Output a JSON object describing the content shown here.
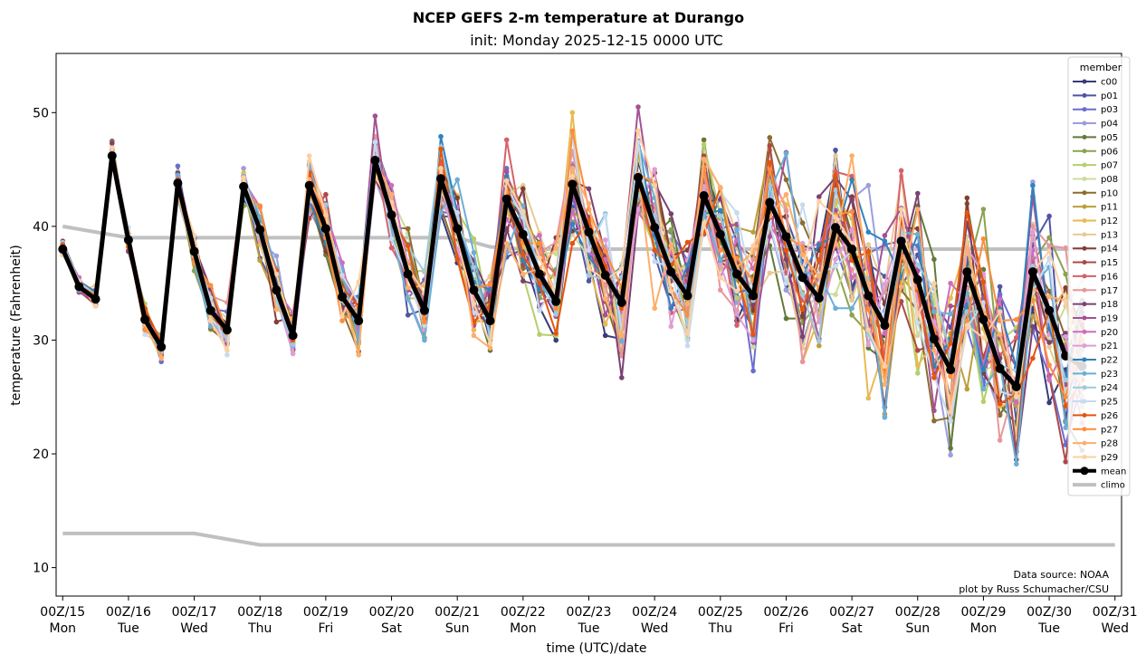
{
  "chart_data": {
    "type": "line",
    "title": "NCEP GEFS 2-m temperature at Durango",
    "subtitle": "init: Monday 2025-12-15 0000 UTC",
    "xlabel": "time (UTC)/date",
    "ylabel": "temperature (Fahrenheit)",
    "xlim": [
      -0.1,
      16.1
    ],
    "ylim": [
      7.5,
      55.2
    ],
    "yticks": [
      10,
      20,
      30,
      40,
      50
    ],
    "xticks": [
      {
        "day": 0,
        "label": "00Z/15",
        "weekday": "Mon"
      },
      {
        "day": 1,
        "label": "00Z/16",
        "weekday": "Tue"
      },
      {
        "day": 2,
        "label": "00Z/17",
        "weekday": "Wed"
      },
      {
        "day": 3,
        "label": "00Z/18",
        "weekday": "Thu"
      },
      {
        "day": 4,
        "label": "00Z/19",
        "weekday": "Fri"
      },
      {
        "day": 5,
        "label": "00Z/20",
        "weekday": "Sat"
      },
      {
        "day": 6,
        "label": "00Z/21",
        "weekday": "Sun"
      },
      {
        "day": 7,
        "label": "00Z/22",
        "weekday": "Mon"
      },
      {
        "day": 8,
        "label": "00Z/23",
        "weekday": "Tue"
      },
      {
        "day": 9,
        "label": "00Z/24",
        "weekday": "Wed"
      },
      {
        "day": 10,
        "label": "00Z/25",
        "weekday": "Thu"
      },
      {
        "day": 11,
        "label": "00Z/26",
        "weekday": "Fri"
      },
      {
        "day": 12,
        "label": "00Z/27",
        "weekday": "Sat"
      },
      {
        "day": 13,
        "label": "00Z/28",
        "weekday": "Sun"
      },
      {
        "day": 14,
        "label": "00Z/29",
        "weekday": "Mon"
      },
      {
        "day": 15,
        "label": "00Z/30",
        "weekday": "Tue"
      },
      {
        "day": 16,
        "label": "00Z/31",
        "weekday": "Wed"
      }
    ],
    "time_step_days": 0.25,
    "legend": {
      "title": "member",
      "position": "top-right"
    },
    "mean": {
      "name": "mean",
      "color": "#000000",
      "values": [
        38,
        34.7,
        33.6,
        46.2,
        38.8,
        31.8,
        29.4,
        43.8,
        37.8,
        32.6,
        30.9,
        43.5,
        39.7,
        34.4,
        30.4,
        43.6,
        39.8,
        33.8,
        31.7,
        45.8,
        41.0,
        35.8,
        32.6,
        44.2,
        39.8,
        34.4,
        31.7,
        42.4,
        39.3,
        35.8,
        33.4,
        43.7,
        39.5,
        35.7,
        33.3,
        44.3,
        39.9,
        36.0,
        33.9,
        42.7,
        39.3,
        35.8,
        33.9,
        42.1,
        39.1,
        35.5,
        33.7,
        39.9,
        38.0,
        33.9,
        31.3,
        38.7,
        35.3,
        30.1,
        27.4,
        36.0,
        31.8,
        27.5,
        25.9,
        36.0,
        32.6,
        28.6,
        27.7
      ]
    },
    "climo": {
      "name": "climo",
      "color": "#c0c0c0",
      "upper": [
        [
          0,
          40
        ],
        [
          1,
          39
        ],
        [
          2,
          39
        ],
        [
          3,
          39
        ],
        [
          4,
          39
        ],
        [
          5,
          39
        ],
        [
          6,
          39
        ],
        [
          6.5,
          38.2
        ],
        [
          7,
          38
        ],
        [
          16,
          38
        ]
      ],
      "lower": [
        [
          0,
          13
        ],
        [
          2,
          13
        ],
        [
          3,
          12
        ],
        [
          16,
          12
        ]
      ]
    },
    "series": [
      {
        "name": "c00",
        "color": "#393b79"
      },
      {
        "name": "p01",
        "color": "#5254a3"
      },
      {
        "name": "p03",
        "color": "#6b6ecf"
      },
      {
        "name": "p04",
        "color": "#9c9ede"
      },
      {
        "name": "p05",
        "color": "#637939"
      },
      {
        "name": "p06",
        "color": "#8ca252"
      },
      {
        "name": "p07",
        "color": "#b5cf6b"
      },
      {
        "name": "p08",
        "color": "#cedb9c"
      },
      {
        "name": "p10",
        "color": "#8c6d31"
      },
      {
        "name": "p11",
        "color": "#bd9e39"
      },
      {
        "name": "p12",
        "color": "#e7ba52"
      },
      {
        "name": "p13",
        "color": "#e7cb94"
      },
      {
        "name": "p14",
        "color": "#843c39"
      },
      {
        "name": "p15",
        "color": "#ad494a"
      },
      {
        "name": "p16",
        "color": "#d6616b"
      },
      {
        "name": "p17",
        "color": "#e7969c"
      },
      {
        "name": "p18",
        "color": "#7b4173"
      },
      {
        "name": "p19",
        "color": "#a55194"
      },
      {
        "name": "p20",
        "color": "#ce6dbd"
      },
      {
        "name": "p21",
        "color": "#de9ed6"
      },
      {
        "name": "p22",
        "color": "#3182bd"
      },
      {
        "name": "p23",
        "color": "#6baed6"
      },
      {
        "name": "p24",
        "color": "#9ecae1"
      },
      {
        "name": "p25",
        "color": "#c6dbef"
      },
      {
        "name": "p26",
        "color": "#e6550d"
      },
      {
        "name": "p27",
        "color": "#fd8d3c"
      },
      {
        "name": "p28",
        "color": "#fdae6b"
      },
      {
        "name": "p29",
        "color": "#fdd0a2"
      }
    ]
  },
  "credits": {
    "line1": "Data source: NOAA",
    "line2": "plot by Russ Schumacher/CSU"
  }
}
